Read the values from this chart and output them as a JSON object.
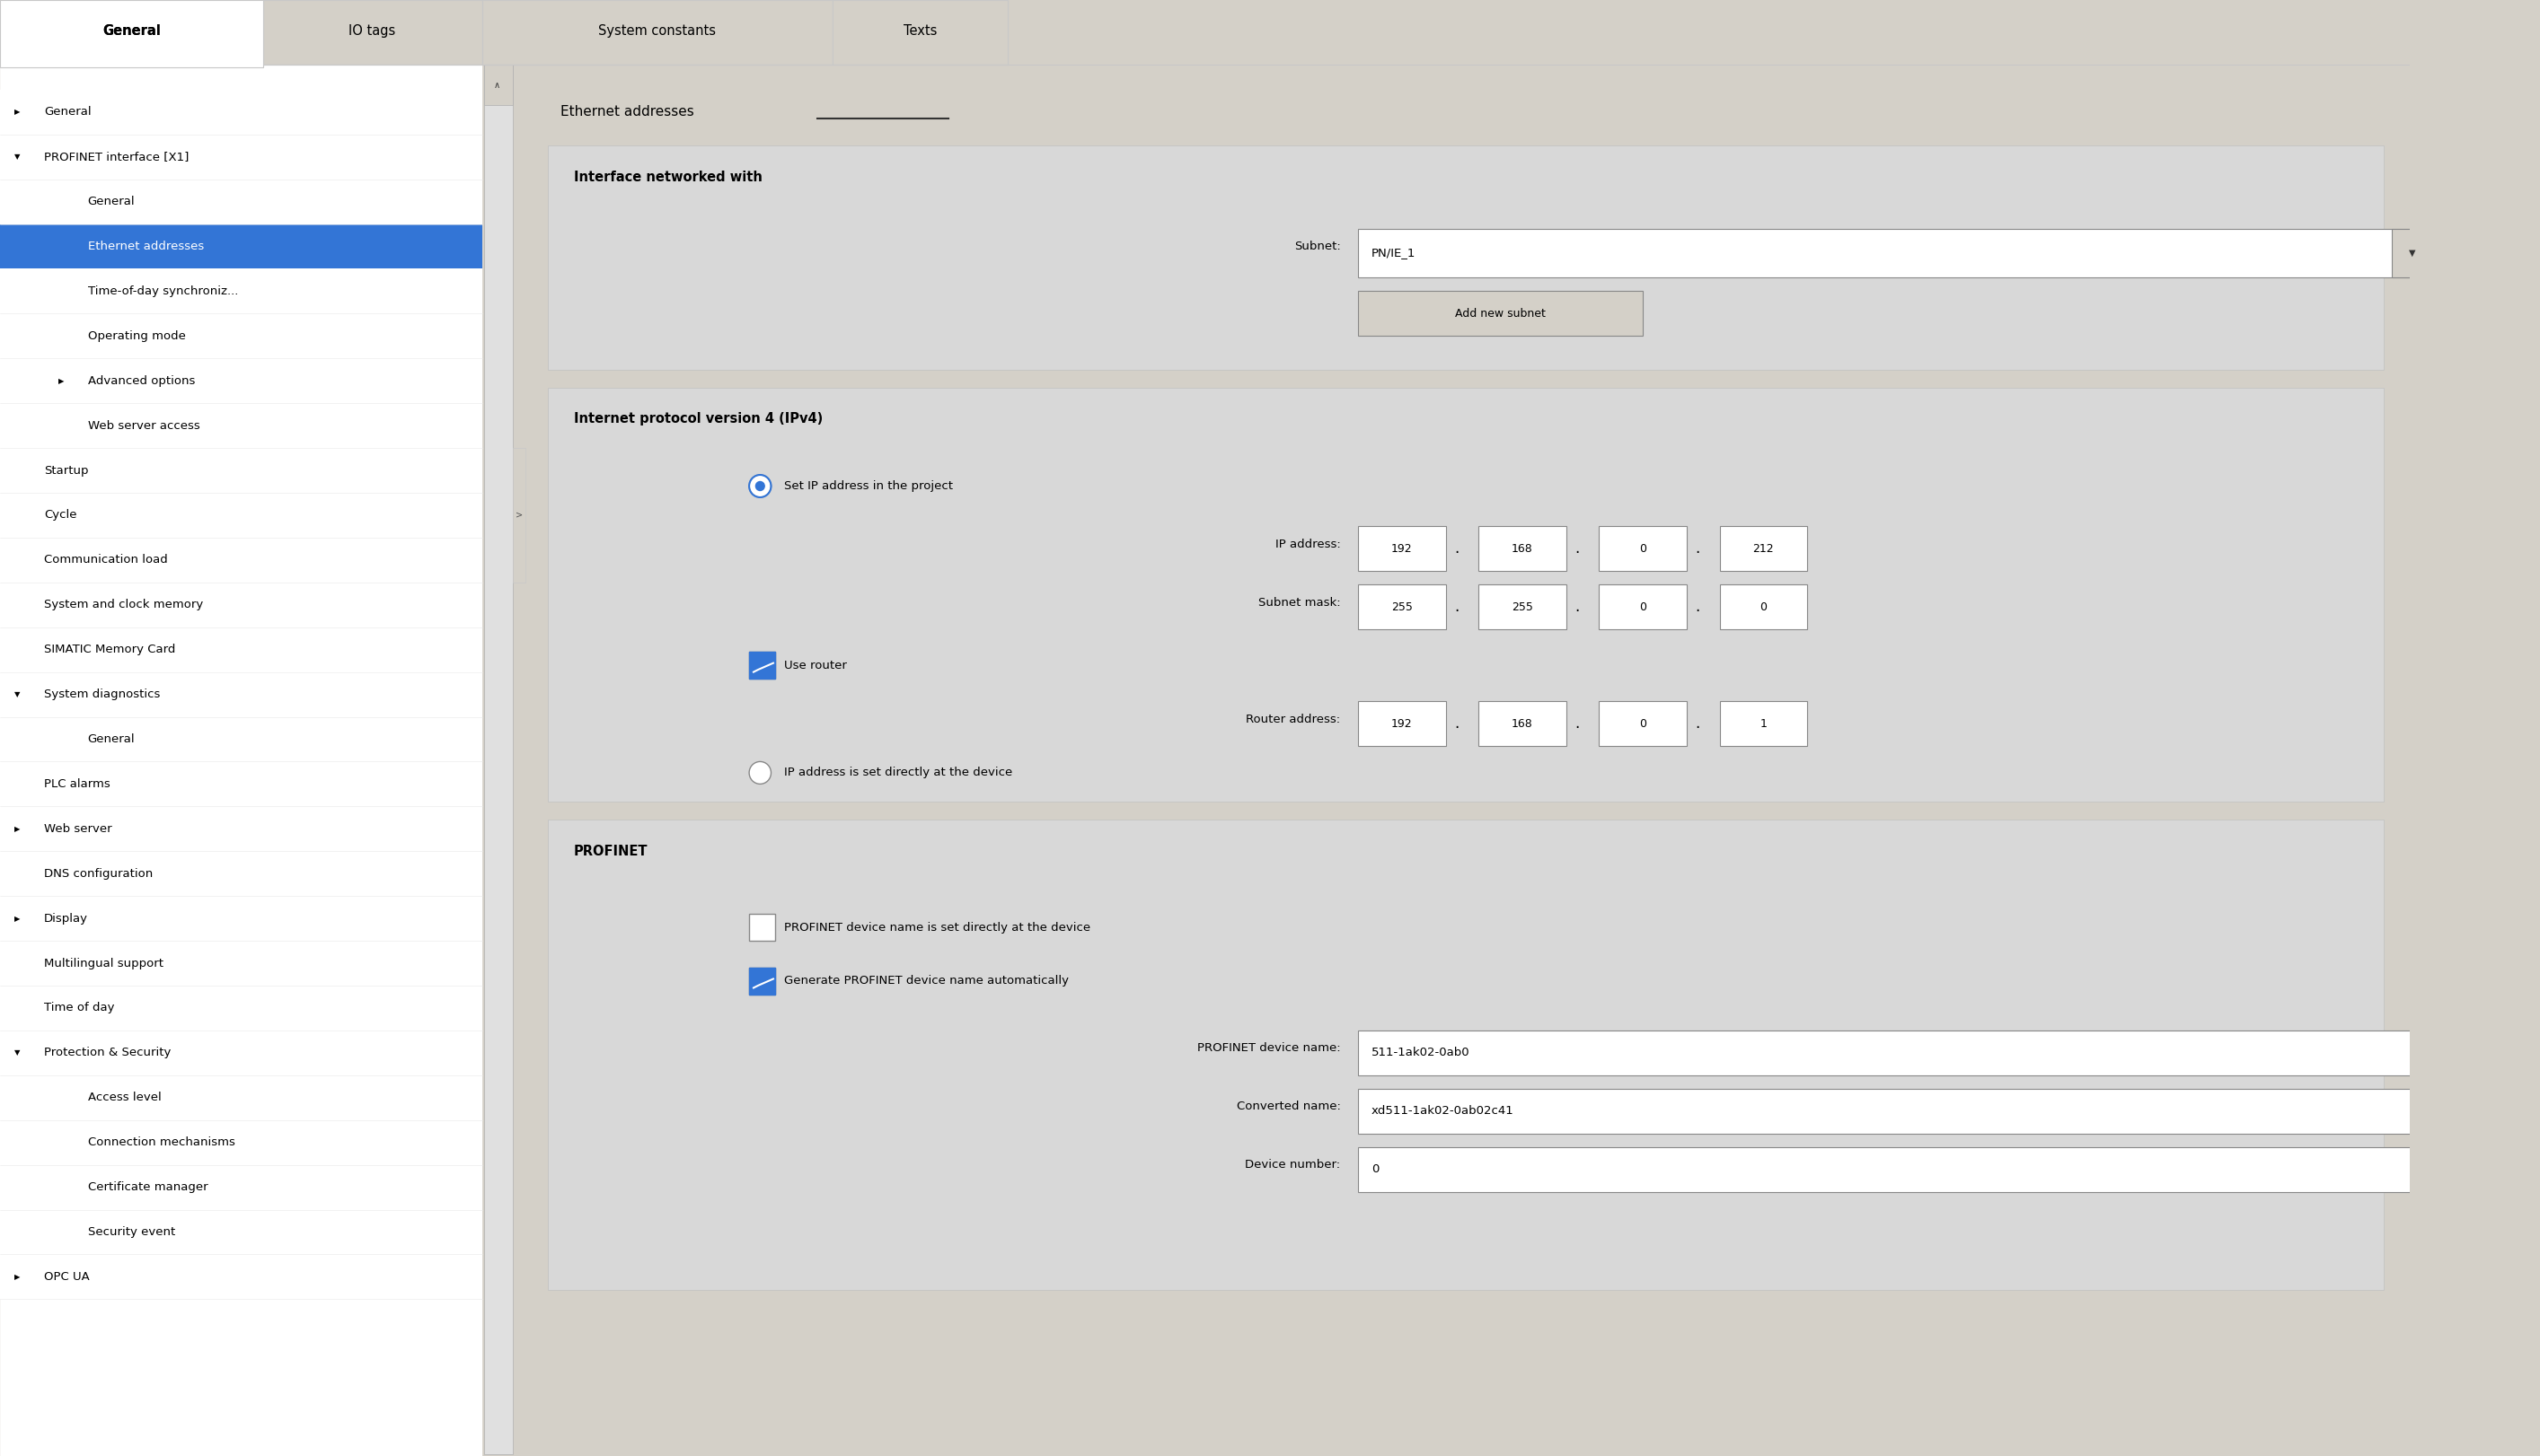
{
  "bg_color": "#d4d0c8",
  "white": "#ffffff",
  "light_gray": "#e8e8e8",
  "mid_gray": "#c8c8c8",
  "dark_gray": "#a0a0a0",
  "selected_blue": "#3375d6",
  "selected_blue_text": "#ffffff",
  "text_color": "#000000",
  "tab_active_bg": "#ffffff",
  "tab_inactive_bg": "#d4d0c8",
  "section_header_bg": "#c8c8c8",
  "input_bg": "#ffffff",
  "input_border": "#888888",
  "tabs": [
    "General",
    "IO tags",
    "System constants",
    "Texts"
  ],
  "active_tab": 0,
  "nav_items": [
    {
      "text": "General",
      "level": 0,
      "arrow": "right",
      "selected": false
    },
    {
      "text": "PROFINET interface [X1]",
      "level": 0,
      "arrow": "down",
      "selected": false
    },
    {
      "text": "General",
      "level": 1,
      "arrow": null,
      "selected": false
    },
    {
      "text": "Ethernet addresses",
      "level": 1,
      "arrow": null,
      "selected": true
    },
    {
      "text": "Time-of-day synchroniz...",
      "level": 1,
      "arrow": null,
      "selected": false
    },
    {
      "text": "Operating mode",
      "level": 1,
      "arrow": null,
      "selected": false
    },
    {
      "text": "Advanced options",
      "level": 1,
      "arrow": "right",
      "selected": false
    },
    {
      "text": "Web server access",
      "level": 1,
      "arrow": null,
      "selected": false
    },
    {
      "text": "Startup",
      "level": 0,
      "arrow": null,
      "selected": false
    },
    {
      "text": "Cycle",
      "level": 0,
      "arrow": null,
      "selected": false
    },
    {
      "text": "Communication load",
      "level": 0,
      "arrow": null,
      "selected": false
    },
    {
      "text": "System and clock memory",
      "level": 0,
      "arrow": null,
      "selected": false
    },
    {
      "text": "SIMATIC Memory Card",
      "level": 0,
      "arrow": null,
      "selected": false
    },
    {
      "text": "System diagnostics",
      "level": 0,
      "arrow": "down",
      "selected": false
    },
    {
      "text": "General",
      "level": 1,
      "arrow": null,
      "selected": false
    },
    {
      "text": "PLC alarms",
      "level": 0,
      "arrow": null,
      "selected": false
    },
    {
      "text": "Web server",
      "level": 0,
      "arrow": "right",
      "selected": false
    },
    {
      "text": "DNS configuration",
      "level": 0,
      "arrow": null,
      "selected": false
    },
    {
      "text": "Display",
      "level": 0,
      "arrow": "right",
      "selected": false
    },
    {
      "text": "Multilingual support",
      "level": 0,
      "arrow": null,
      "selected": false
    },
    {
      "text": "Time of day",
      "level": 0,
      "arrow": null,
      "selected": false
    },
    {
      "text": "Protection & Security",
      "level": 0,
      "arrow": "down",
      "selected": false
    },
    {
      "text": "Access level",
      "level": 1,
      "arrow": null,
      "selected": false
    },
    {
      "text": "Connection mechanisms",
      "level": 1,
      "arrow": null,
      "selected": false
    },
    {
      "text": "Certificate manager",
      "level": 1,
      "arrow": null,
      "selected": false
    },
    {
      "text": "Security event",
      "level": 1,
      "arrow": null,
      "selected": false
    },
    {
      "text": "OPC UA",
      "level": 0,
      "arrow": "right",
      "selected": false
    }
  ],
  "page_title": "Ethernet addresses",
  "section1_title": "Interface networked with",
  "subnet_label": "Subnet:",
  "subnet_value": "PN/IE_1",
  "add_subnet_btn": "Add new subnet",
  "section2_title": "Internet protocol version 4 (IPv4)",
  "radio1_text": "Set IP address in the project",
  "ip_label": "IP address:",
  "ip_values": [
    "192",
    "168",
    "0",
    "212"
  ],
  "mask_label": "Subnet mask:",
  "mask_values": [
    "255",
    "255",
    "0",
    "0"
  ],
  "checkbox1_text": "Use router",
  "router_label": "Router address:",
  "router_values": [
    "192",
    "168",
    "0",
    "1"
  ],
  "radio2_text": "IP address is set directly at the device",
  "section3_title": "PROFINET",
  "profinet_cb1_text": "PROFINET device name is set directly at the device",
  "profinet_cb2_text": "Generate PROFINET device name automatically",
  "device_name_label": "PROFINET device name:",
  "device_name_value": "511-1ak02-0ab0",
  "converted_label": "Converted name:",
  "converted_value": "xd511-1ak02-0ab02c41",
  "device_number_label": "Device number:",
  "device_number_value": "0"
}
